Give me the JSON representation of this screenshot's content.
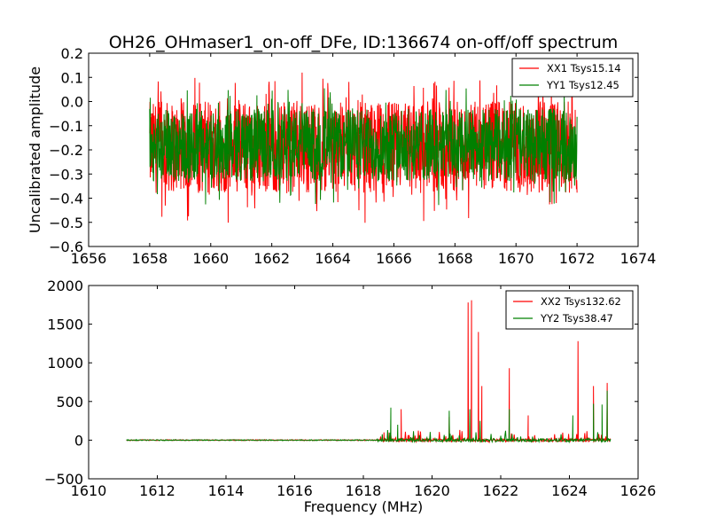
{
  "colors": {
    "red": "#ff0000",
    "green": "#008000",
    "axes": "#000000",
    "background": "#ffffff"
  },
  "chart_data": [
    {
      "type": "line",
      "title": "OH26_OHmaser1_on-off_DFe, ID:136674 on-off/off spectrum",
      "xlabel": "",
      "ylabel": "Uncalibrated amplitude",
      "xlim": [
        1656,
        1674
      ],
      "ylim": [
        -0.6,
        0.2
      ],
      "xticks": [
        1656,
        1658,
        1660,
        1662,
        1664,
        1666,
        1668,
        1670,
        1672,
        1674
      ],
      "xtick_labels": [
        "1656",
        "1658",
        "1660",
        "1662",
        "1664",
        "1666",
        "1668",
        "1670",
        "1672",
        "1674"
      ],
      "yticks": [
        -0.6,
        -0.5,
        -0.4,
        -0.3,
        -0.2,
        -0.1,
        0.0,
        0.1,
        0.2
      ],
      "ytick_labels": [
        "−0.6",
        "−0.5",
        "−0.4",
        "−0.3",
        "−0.2",
        "−0.1",
        "0.0",
        "0.1",
        "0.2"
      ],
      "grid": false,
      "legend_position": "top-right",
      "series": [
        {
          "name": "XX1 Tsys15.14",
          "color": "#ff0000",
          "x_range": [
            1658,
            1672
          ],
          "noise_center": -0.19,
          "noise_typical_range": [
            -0.38,
            0.0
          ],
          "noise_extreme_range": [
            -0.51,
            0.13
          ]
        },
        {
          "name": "YY1 Tsys12.45",
          "color": "#008000",
          "x_range": [
            1658,
            1672
          ],
          "noise_center": -0.19,
          "noise_typical_range": [
            -0.33,
            -0.03
          ],
          "noise_extreme_range": [
            -0.43,
            0.06
          ]
        }
      ]
    },
    {
      "type": "line",
      "title": "",
      "xlabel": "Frequency (MHz)",
      "ylabel": "",
      "xlim": [
        1610,
        1626
      ],
      "ylim": [
        -500,
        2000
      ],
      "xticks": [
        1610,
        1612,
        1614,
        1616,
        1618,
        1620,
        1622,
        1624,
        1626
      ],
      "xtick_labels": [
        "1610",
        "1612",
        "1614",
        "1616",
        "1618",
        "1620",
        "1622",
        "1624",
        "1626"
      ],
      "yticks": [
        -500,
        0,
        500,
        1000,
        1500,
        2000
      ],
      "ytick_labels": [
        "−500",
        "0",
        "500",
        "1000",
        "1500",
        "2000"
      ],
      "grid": false,
      "legend_position": "top-right",
      "series": [
        {
          "name": "XX2 Tsys132.62",
          "color": "#ff0000",
          "x_range": [
            1611.1,
            1625.2
          ],
          "baseline": 0,
          "peaks": [
            {
              "x": 1618.6,
              "y": 100
            },
            {
              "x": 1619.1,
              "y": 400
            },
            {
              "x": 1620.5,
              "y": 300
            },
            {
              "x": 1621.05,
              "y": 1780
            },
            {
              "x": 1621.15,
              "y": 1810
            },
            {
              "x": 1621.35,
              "y": 1400
            },
            {
              "x": 1621.45,
              "y": 700
            },
            {
              "x": 1622.25,
              "y": 930
            },
            {
              "x": 1622.8,
              "y": 320
            },
            {
              "x": 1624.25,
              "y": 1280
            },
            {
              "x": 1624.7,
              "y": 700
            },
            {
              "x": 1625.1,
              "y": 740
            }
          ]
        },
        {
          "name": "YY2 Tsys38.47",
          "color": "#008000",
          "x_range": [
            1611.1,
            1625.2
          ],
          "baseline": 0,
          "peaks": [
            {
              "x": 1618.8,
              "y": 420
            },
            {
              "x": 1619.0,
              "y": 200
            },
            {
              "x": 1620.5,
              "y": 380
            },
            {
              "x": 1621.1,
              "y": 400
            },
            {
              "x": 1621.4,
              "y": 250
            },
            {
              "x": 1622.25,
              "y": 400
            },
            {
              "x": 1624.1,
              "y": 320
            },
            {
              "x": 1624.7,
              "y": 470
            },
            {
              "x": 1624.95,
              "y": 460
            },
            {
              "x": 1625.1,
              "y": 640
            }
          ]
        }
      ]
    }
  ]
}
